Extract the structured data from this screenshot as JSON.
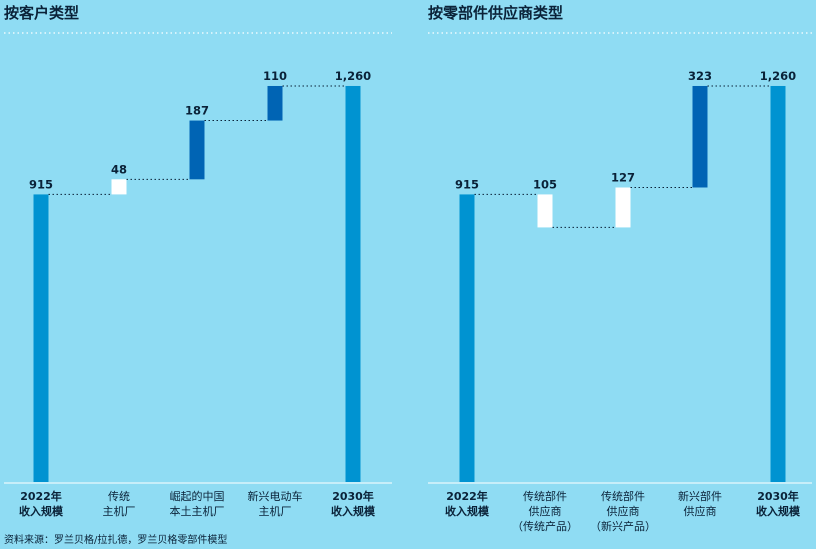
{
  "colors": {
    "background": "#8fdcf3",
    "total": "#0093d1",
    "increase_dark": "#0064b4",
    "increase_light": "#ffffff",
    "connector": "#0a2238",
    "separator": "#ffffff"
  },
  "source_note": "资料来源：罗兰贝格/拉扎德，罗兰贝格零部件模型",
  "chart_data": [
    {
      "type": "waterfall",
      "title": "按客户类型",
      "ylim": [
        0,
        1400
      ],
      "steps": [
        {
          "label_lines": [
            "2022年",
            "收入规模"
          ],
          "value": 915,
          "kind": "total",
          "bold": true
        },
        {
          "label_lines": [
            "传统",
            "主机厂"
          ],
          "value": 48,
          "kind": "increase_light",
          "bold": false
        },
        {
          "label_lines": [
            "崛起的中国",
            "本土主机厂"
          ],
          "value": 187,
          "kind": "increase_dark",
          "bold": false
        },
        {
          "label_lines": [
            "新兴电动车",
            "主机厂"
          ],
          "value": 110,
          "kind": "increase_dark",
          "bold": false
        },
        {
          "label_lines": [
            "2030年",
            "收入规模"
          ],
          "value": 1260,
          "kind": "total",
          "bold": true
        }
      ]
    },
    {
      "type": "waterfall",
      "title": "按零部件供应商类型",
      "ylim": [
        0,
        1400
      ],
      "steps": [
        {
          "label_lines": [
            "2022年",
            "收入规模"
          ],
          "value": 915,
          "kind": "total",
          "bold": true
        },
        {
          "label_lines": [
            "传统部件",
            "供应商",
            "（传统产品）"
          ],
          "value": 105,
          "kind": "increase_light",
          "bold": false,
          "display_sign": "down"
        },
        {
          "label_lines": [
            "传统部件",
            "供应商",
            "（新兴产品）"
          ],
          "value": 127,
          "kind": "increase_light",
          "bold": false
        },
        {
          "label_lines": [
            "新兴部件",
            "供应商"
          ],
          "value": 323,
          "kind": "increase_dark",
          "bold": false
        },
        {
          "label_lines": [
            "2030年",
            "收入规模"
          ],
          "value": 1260,
          "kind": "total",
          "bold": true
        }
      ]
    }
  ]
}
